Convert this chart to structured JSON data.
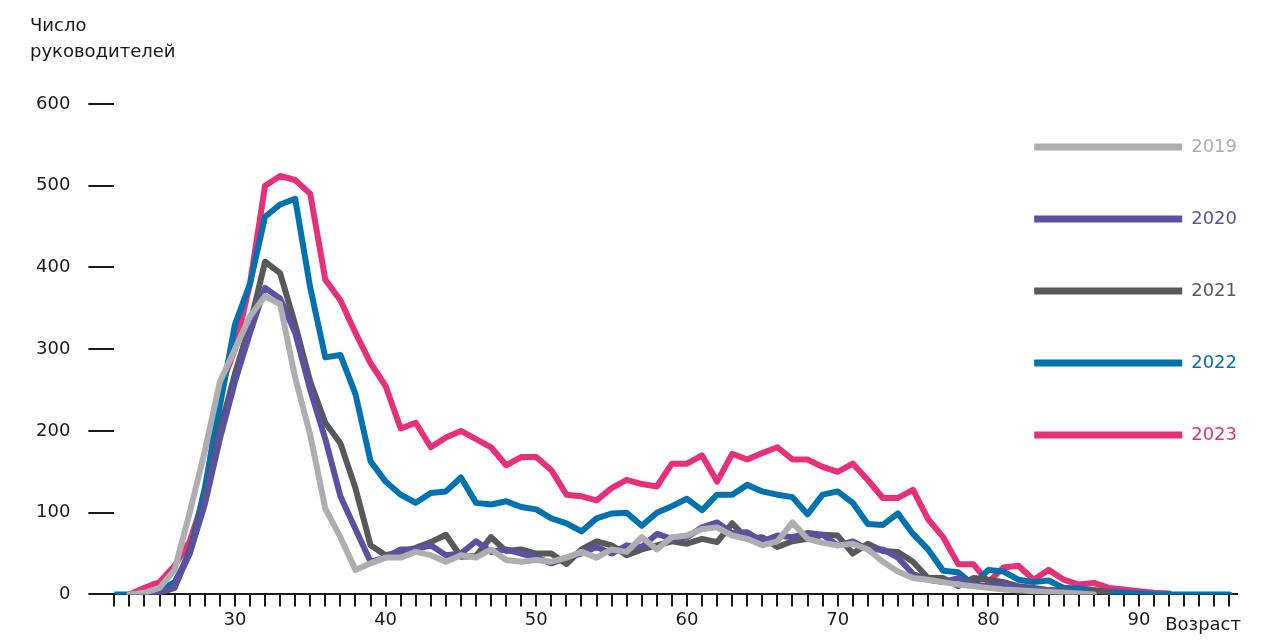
{
  "chart_data": {
    "type": "line",
    "ylabel": "Число руководителей",
    "xlabel": "Возраст",
    "xlim": [
      22,
      96.5
    ],
    "ylim": [
      0,
      600
    ],
    "yticks": [
      0,
      100,
      200,
      300,
      400,
      500,
      600
    ],
    "xticks": [
      {
        "value": 22,
        "label": null
      },
      {
        "value": 23,
        "label": null
      },
      {
        "value": 24,
        "label": null
      },
      {
        "value": 25,
        "label": null
      },
      {
        "value": 26,
        "label": null
      },
      {
        "value": 27,
        "label": null
      },
      {
        "value": 28,
        "label": null
      },
      {
        "value": 29,
        "label": null
      },
      30,
      {
        "value": 31,
        "label": null
      },
      {
        "value": 32,
        "label": null
      },
      {
        "value": 33,
        "label": null
      },
      {
        "value": 34,
        "label": null
      },
      {
        "value": 35,
        "label": null
      },
      {
        "value": 36,
        "label": null
      },
      {
        "value": 37,
        "label": null
      },
      {
        "value": 38,
        "label": null
      },
      {
        "value": 39,
        "label": null
      },
      40,
      {
        "value": 41,
        "label": null
      },
      {
        "value": 42,
        "label": null
      },
      {
        "value": 43,
        "label": null
      },
      {
        "value": 44,
        "label": null
      },
      {
        "value": 45,
        "label": null
      },
      {
        "value": 46,
        "label": null
      },
      {
        "value": 47,
        "label": null
      },
      {
        "value": 48,
        "label": null
      },
      {
        "value": 49,
        "label": null
      },
      50,
      {
        "value": 51,
        "label": null
      },
      {
        "value": 52,
        "label": null
      },
      {
        "value": 53,
        "label": null
      },
      {
        "value": 54,
        "label": null
      },
      {
        "value": 55,
        "label": null
      },
      {
        "value": 56,
        "label": null
      },
      {
        "value": 57,
        "label": null
      },
      {
        "value": 58,
        "label": null
      },
      {
        "value": 59,
        "label": null
      },
      60,
      {
        "value": 61,
        "label": null
      },
      {
        "value": 62,
        "label": null
      },
      {
        "value": 63,
        "label": null
      },
      {
        "value": 64,
        "label": null
      },
      {
        "value": 65,
        "label": null
      },
      {
        "value": 66,
        "label": null
      },
      {
        "value": 67,
        "label": null
      },
      {
        "value": 68,
        "label": null
      },
      {
        "value": 69,
        "label": null
      },
      70,
      {
        "value": 71,
        "label": null
      },
      {
        "value": 72,
        "label": null
      },
      {
        "value": 73,
        "label": null
      },
      {
        "value": 74,
        "label": null
      },
      {
        "value": 75,
        "label": null
      },
      {
        "value": 76,
        "label": null
      },
      {
        "value": 77,
        "label": null
      },
      {
        "value": 78,
        "label": null
      },
      {
        "value": 79,
        "label": null
      },
      80,
      {
        "value": 81,
        "label": null
      },
      {
        "value": 82,
        "label": null
      },
      {
        "value": 83,
        "label": null
      },
      {
        "value": 84,
        "label": null
      },
      {
        "value": 85,
        "label": null
      },
      {
        "value": 86,
        "label": null
      },
      {
        "value": 87,
        "label": null
      },
      {
        "value": 88,
        "label": null
      },
      {
        "value": 89,
        "label": null
      },
      90,
      {
        "value": 91,
        "label": null
      },
      {
        "value": 92,
        "label": null
      },
      {
        "value": 93,
        "label": null
      },
      {
        "value": 94,
        "label": null
      },
      {
        "value": 95,
        "label": null
      },
      {
        "value": 96,
        "label": null
      }
    ],
    "legend": "top right",
    "grid": false,
    "marker": "none",
    "line_style": "solid",
    "series": [
      {
        "name": "2019",
        "color": "#aeaeb2",
        "x": [
          23,
          24,
          25,
          26,
          27,
          28,
          29,
          30,
          31,
          32,
          33,
          34,
          35,
          36,
          37,
          38,
          39,
          40,
          41,
          42,
          43,
          44,
          45,
          46,
          47,
          48,
          49,
          50,
          51,
          52,
          53,
          54,
          55,
          56,
          57,
          58,
          59,
          60,
          61,
          62,
          63,
          64,
          65,
          66,
          67,
          68,
          69,
          70,
          71,
          72,
          73,
          74,
          75,
          76,
          77,
          78,
          79,
          80,
          81,
          82,
          83,
          84,
          85,
          86,
          87
        ],
        "values": [
          0,
          2,
          8,
          30,
          100,
          175,
          260,
          300,
          340,
          365,
          355,
          265,
          195,
          105,
          70,
          30,
          38,
          45,
          45,
          52,
          48,
          40,
          48,
          45,
          55,
          42,
          40,
          42,
          40,
          45,
          52,
          45,
          55,
          52,
          70,
          55,
          70,
          72,
          80,
          82,
          72,
          68,
          60,
          65,
          88,
          68,
          63,
          60,
          62,
          55,
          40,
          28,
          20,
          18,
          15,
          12,
          10,
          8,
          6,
          5,
          4,
          3,
          2,
          1,
          0
        ]
      },
      {
        "name": "2020",
        "color": "#5b51a3",
        "x": [
          23,
          24,
          25,
          26,
          27,
          28,
          29,
          30,
          31,
          32,
          33,
          34,
          35,
          36,
          37,
          38,
          39,
          40,
          41,
          42,
          43,
          44,
          45,
          46,
          47,
          48,
          49,
          50,
          51,
          52,
          53,
          54,
          55,
          56,
          57,
          58,
          59,
          60,
          61,
          62,
          63,
          64,
          65,
          66,
          67,
          68,
          69,
          70,
          71,
          72,
          73,
          74,
          75,
          76,
          77,
          78,
          79,
          80,
          81,
          82,
          83,
          84,
          85,
          86,
          87
        ],
        "values": [
          0,
          0,
          3,
          10,
          50,
          110,
          190,
          260,
          320,
          375,
          362,
          320,
          250,
          190,
          120,
          80,
          40,
          45,
          55,
          55,
          60,
          48,
          50,
          65,
          52,
          55,
          50,
          45,
          38,
          45,
          50,
          58,
          50,
          60,
          58,
          74,
          68,
          70,
          82,
          88,
          75,
          76,
          65,
          72,
          70,
          75,
          73,
          60,
          65,
          55,
          55,
          45,
          25,
          18,
          15,
          20,
          12,
          10,
          12,
          8,
          7,
          5,
          3,
          2,
          0
        ]
      },
      {
        "name": "2021",
        "color": "#58595b",
        "x": [
          23,
          24,
          25,
          26,
          27,
          28,
          29,
          30,
          31,
          32,
          33,
          34,
          35,
          36,
          37,
          38,
          39,
          40,
          41,
          42,
          43,
          44,
          45,
          46,
          47,
          48,
          49,
          50,
          51,
          52,
          53,
          54,
          55,
          56,
          57,
          58,
          59,
          60,
          61,
          62,
          63,
          64,
          65,
          66,
          67,
          68,
          69,
          70,
          71,
          72,
          73,
          74,
          75,
          76,
          77,
          78,
          79,
          80,
          81,
          82,
          83,
          84,
          85,
          86,
          87,
          88
        ],
        "values": [
          0,
          0,
          2,
          8,
          55,
          115,
          200,
          270,
          330,
          407,
          393,
          330,
          260,
          210,
          185,
          130,
          60,
          48,
          52,
          57,
          64,
          73,
          46,
          47,
          70,
          53,
          55,
          50,
          50,
          37,
          55,
          65,
          60,
          48,
          55,
          60,
          65,
          62,
          68,
          64,
          87,
          68,
          70,
          58,
          65,
          68,
          73,
          72,
          50,
          62,
          53,
          52,
          40,
          20,
          20,
          10,
          20,
          18,
          15,
          10,
          8,
          5,
          5,
          0,
          5,
          2
        ]
      },
      {
        "name": "2022",
        "color": "#0072b0",
        "x": [
          22,
          23,
          24,
          25,
          26,
          27,
          28,
          29,
          30,
          31,
          32,
          33,
          34,
          35,
          36,
          37,
          38,
          39,
          40,
          41,
          42,
          43,
          44,
          45,
          46,
          47,
          48,
          49,
          50,
          51,
          52,
          53,
          54,
          55,
          56,
          57,
          58,
          59,
          60,
          61,
          62,
          63,
          64,
          65,
          66,
          67,
          68,
          69,
          70,
          71,
          72,
          73,
          74,
          75,
          76,
          77,
          78,
          79,
          80,
          81,
          82,
          83,
          84,
          85,
          86,
          87,
          88,
          89,
          90,
          91,
          92,
          93,
          94,
          95,
          96
        ],
        "values": [
          0,
          0,
          2,
          5,
          15,
          50,
          130,
          230,
          330,
          380,
          462,
          477,
          484,
          375,
          290,
          293,
          245,
          163,
          138,
          122,
          112,
          124,
          126,
          143,
          112,
          110,
          114,
          107,
          104,
          93,
          87,
          77,
          93,
          99,
          100,
          84,
          100,
          108,
          117,
          103,
          122,
          122,
          134,
          126,
          122,
          119,
          98,
          122,
          126,
          112,
          86,
          85,
          99,
          74,
          55,
          29,
          27,
          12,
          30,
          28,
          18,
          15,
          17,
          8,
          7,
          5,
          3,
          2,
          1,
          0,
          0,
          0,
          0,
          0,
          0
        ]
      },
      {
        "name": "2023",
        "color": "#e8307a",
        "x": [
          23,
          24,
          25,
          26,
          27,
          28,
          29,
          30,
          31,
          32,
          33,
          34,
          35,
          36,
          37,
          38,
          39,
          40,
          41,
          42,
          43,
          44,
          45,
          46,
          47,
          48,
          49,
          50,
          51,
          52,
          53,
          54,
          55,
          56,
          57,
          58,
          59,
          60,
          61,
          62,
          63,
          64,
          65,
          66,
          67,
          68,
          69,
          70,
          71,
          72,
          73,
          74,
          75,
          76,
          77,
          78,
          79,
          80,
          81,
          82,
          83,
          84,
          85,
          86,
          87,
          88,
          89,
          90,
          91,
          92
        ],
        "values": [
          0,
          8,
          15,
          35,
          65,
          120,
          250,
          300,
          380,
          500,
          512,
          507,
          490,
          385,
          360,
          320,
          283,
          255,
          203,
          210,
          180,
          192,
          200,
          190,
          180,
          158,
          168,
          168,
          152,
          122,
          120,
          115,
          130,
          140,
          135,
          132,
          160,
          160,
          170,
          138,
          172,
          165,
          173,
          180,
          165,
          165,
          156,
          150,
          160,
          140,
          118,
          118,
          128,
          92,
          70,
          37,
          37,
          15,
          33,
          35,
          18,
          30,
          18,
          12,
          14,
          8,
          6,
          4,
          2,
          1
        ]
      }
    ]
  }
}
